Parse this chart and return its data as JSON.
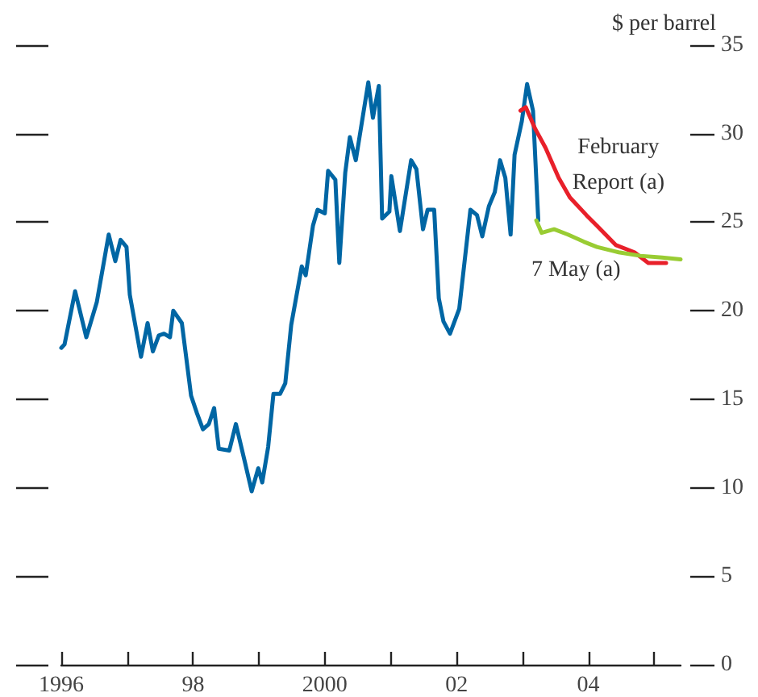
{
  "chart_data": {
    "type": "line",
    "ylabel": "$ per barrel",
    "xlim": [
      1996,
      2005.4
    ],
    "xticks": [
      1996,
      {
        "value": 1997,
        "label": null
      },
      {
        "value": 1998,
        "label": "98"
      },
      {
        "value": 1999,
        "label": null
      },
      2000,
      {
        "value": 2001,
        "label": null
      },
      {
        "value": 2002,
        "label": "02"
      },
      {
        "value": 2003,
        "label": null
      },
      {
        "value": 2004,
        "label": "04"
      },
      {
        "value": 2005,
        "label": null
      }
    ],
    "ylim": [
      0,
      35
    ],
    "yticks": [
      0,
      5,
      10,
      15,
      20,
      25,
      30,
      35
    ],
    "grid": false,
    "marker": "none",
    "line_style": "solid",
    "series": [
      {
        "color": "#0066a4",
        "x": [
          1996.0,
          1996.05,
          1996.21,
          1996.38,
          1996.54,
          1996.72,
          1996.82,
          1996.9,
          1996.99,
          1997.04,
          1997.21,
          1997.31,
          1997.39,
          1997.48,
          1997.56,
          1997.65,
          1997.7,
          1997.83,
          1997.97,
          1998.06,
          1998.15,
          1998.24,
          1998.32,
          1998.39,
          1998.55,
          1998.65,
          1998.79,
          1998.89,
          1998.99,
          1999.05,
          1999.14,
          1999.22,
          1999.32,
          1999.4,
          1999.49,
          1999.65,
          1999.71,
          1999.82,
          1999.89,
          2000.0,
          2000.05,
          2000.16,
          2000.22,
          2000.31,
          2000.38,
          2000.47,
          2000.66,
          2000.73,
          2000.82,
          2000.87,
          2000.98,
          2001.01,
          2001.14,
          2001.31,
          2001.39,
          2001.49,
          2001.56,
          2001.66,
          2001.73,
          2001.8,
          2001.9,
          2002.04,
          2002.21,
          2002.31,
          2002.39,
          2002.49,
          2002.58,
          2002.66,
          2002.74,
          2002.82,
          2002.88,
          2002.99,
          2003.07,
          2003.16,
          2003.24
        ],
        "values": [
          17.9,
          18.1,
          21.1,
          18.5,
          20.5,
          24.3,
          22.8,
          24.0,
          23.6,
          20.9,
          17.4,
          19.3,
          17.7,
          18.6,
          18.7,
          18.5,
          20.0,
          19.3,
          15.2,
          14.2,
          13.3,
          13.6,
          14.5,
          12.2,
          12.1,
          13.6,
          11.4,
          9.8,
          11.1,
          10.3,
          12.3,
          15.3,
          15.3,
          15.9,
          19.2,
          22.5,
          22.0,
          24.8,
          25.7,
          25.5,
          27.9,
          27.4,
          22.7,
          27.8,
          29.8,
          28.5,
          32.9,
          30.9,
          32.7,
          25.2,
          25.6,
          27.6,
          24.5,
          28.5,
          28.0,
          24.6,
          25.7,
          25.7,
          20.7,
          19.4,
          18.7,
          20.1,
          25.7,
          25.4,
          24.2,
          25.9,
          26.7,
          28.5,
          27.5,
          24.3,
          28.8,
          30.7,
          32.8,
          31.3,
          25.1
        ]
      },
      {
        "name": "February\nReport (a)",
        "color": "#e8202a",
        "x": [
          2002.97,
          2003.05,
          2003.19,
          2003.35,
          2003.55,
          2003.72,
          2003.97,
          2004.13,
          2004.42,
          2004.7,
          2004.91,
          2005.18
        ],
        "values": [
          31.3,
          31.5,
          30.3,
          29.2,
          27.5,
          26.4,
          25.4,
          24.8,
          23.7,
          23.3,
          22.7,
          22.7
        ]
      },
      {
        "name": "7 May (a)",
        "color": "#99cc33",
        "x": [
          2003.21,
          2003.29,
          2003.48,
          2003.69,
          2003.93,
          2004.13,
          2004.46,
          2004.79,
          2005.12,
          2005.4
        ],
        "values": [
          25.1,
          24.4,
          24.6,
          24.3,
          23.9,
          23.6,
          23.3,
          23.1,
          23.0,
          22.9
        ]
      }
    ]
  }
}
